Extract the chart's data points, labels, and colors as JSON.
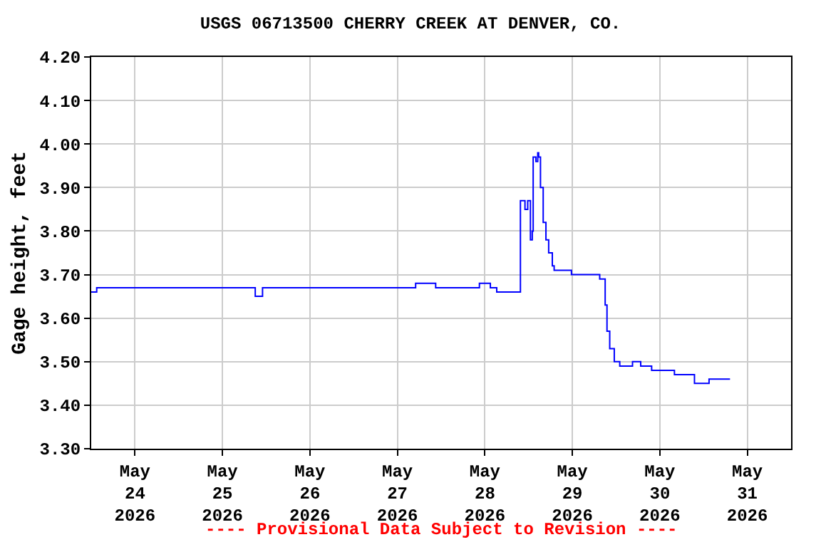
{
  "chart_data": {
    "type": "step",
    "title": "USGS 06713500 CHERRY CREEK AT DENVER, CO.",
    "ylabel": "Gage height, feet",
    "annotations": [
      "---- Provisional Data Subject to Revision ----"
    ],
    "series": [
      {
        "color": "#0000ff",
        "x": [
          "2026-05-23T12:00",
          "2026-05-23T13:30",
          "2026-05-25T09:00",
          "2026-05-25T11:00",
          "2026-05-27T05:00",
          "2026-05-27T10:30",
          "2026-05-27T22:30",
          "2026-05-28T01:30",
          "2026-05-28T03:15",
          "2026-05-28T09:45",
          "2026-05-28T11:00",
          "2026-05-28T11:45",
          "2026-05-28T12:30",
          "2026-05-28T13:00",
          "2026-05-28T13:15",
          "2026-05-28T14:00",
          "2026-05-28T14:30",
          "2026-05-28T14:45",
          "2026-05-28T15:15",
          "2026-05-28T16:00",
          "2026-05-28T16:45",
          "2026-05-28T17:30",
          "2026-05-28T18:30",
          "2026-05-28T19:00",
          "2026-05-28T23:45",
          "2026-05-29T07:30",
          "2026-05-29T09:00",
          "2026-05-29T09:30",
          "2026-05-29T10:15",
          "2026-05-29T11:30",
          "2026-05-29T13:00",
          "2026-05-29T16:30",
          "2026-05-29T18:45",
          "2026-05-29T21:45",
          "2026-05-30T04:00",
          "2026-05-30T09:30",
          "2026-05-30T13:30",
          "2026-05-30T19:15"
        ],
        "values": [
          3.66,
          3.67,
          3.65,
          3.67,
          3.68,
          3.67,
          3.68,
          3.67,
          3.66,
          3.87,
          3.85,
          3.87,
          3.78,
          3.8,
          3.97,
          3.96,
          3.98,
          3.97,
          3.9,
          3.82,
          3.78,
          3.75,
          3.72,
          3.71,
          3.7,
          3.69,
          3.63,
          3.57,
          3.53,
          3.5,
          3.49,
          3.5,
          3.49,
          3.48,
          3.47,
          3.45,
          3.46,
          3.46
        ]
      }
    ],
    "xlim": [
      "2026-05-23T12:00",
      "2026-05-31T12:00"
    ],
    "xticks": [
      {
        "value": "2026-05-24",
        "label": "May\n24\n2026"
      },
      {
        "value": "2026-05-25",
        "label": "May\n25\n2026"
      },
      {
        "value": "2026-05-26",
        "label": "May\n26\n2026"
      },
      {
        "value": "2026-05-27",
        "label": "May\n27\n2026"
      },
      {
        "value": "2026-05-28",
        "label": "May\n28\n2026"
      },
      {
        "value": "2026-05-29",
        "label": "May\n29\n2026"
      },
      {
        "value": "2026-05-30",
        "label": "May\n30\n2026"
      },
      {
        "value": "2026-05-31",
        "label": "May\n31\n2026"
      }
    ],
    "ylim": [
      3.3,
      4.2
    ],
    "yticks": [
      {
        "value": 3.3,
        "label": "3.30"
      },
      {
        "value": 3.4,
        "label": "3.40"
      },
      {
        "value": 3.5,
        "label": "3.50"
      },
      {
        "value": 3.6,
        "label": "3.60"
      },
      {
        "value": 3.7,
        "label": "3.70"
      },
      {
        "value": 3.8,
        "label": "3.80"
      },
      {
        "value": 3.9,
        "label": "3.90"
      },
      {
        "value": 4.0,
        "label": "4.00"
      },
      {
        "value": 4.1,
        "label": "4.10"
      },
      {
        "value": 4.2,
        "label": "4.20"
      }
    ],
    "grid": true
  }
}
